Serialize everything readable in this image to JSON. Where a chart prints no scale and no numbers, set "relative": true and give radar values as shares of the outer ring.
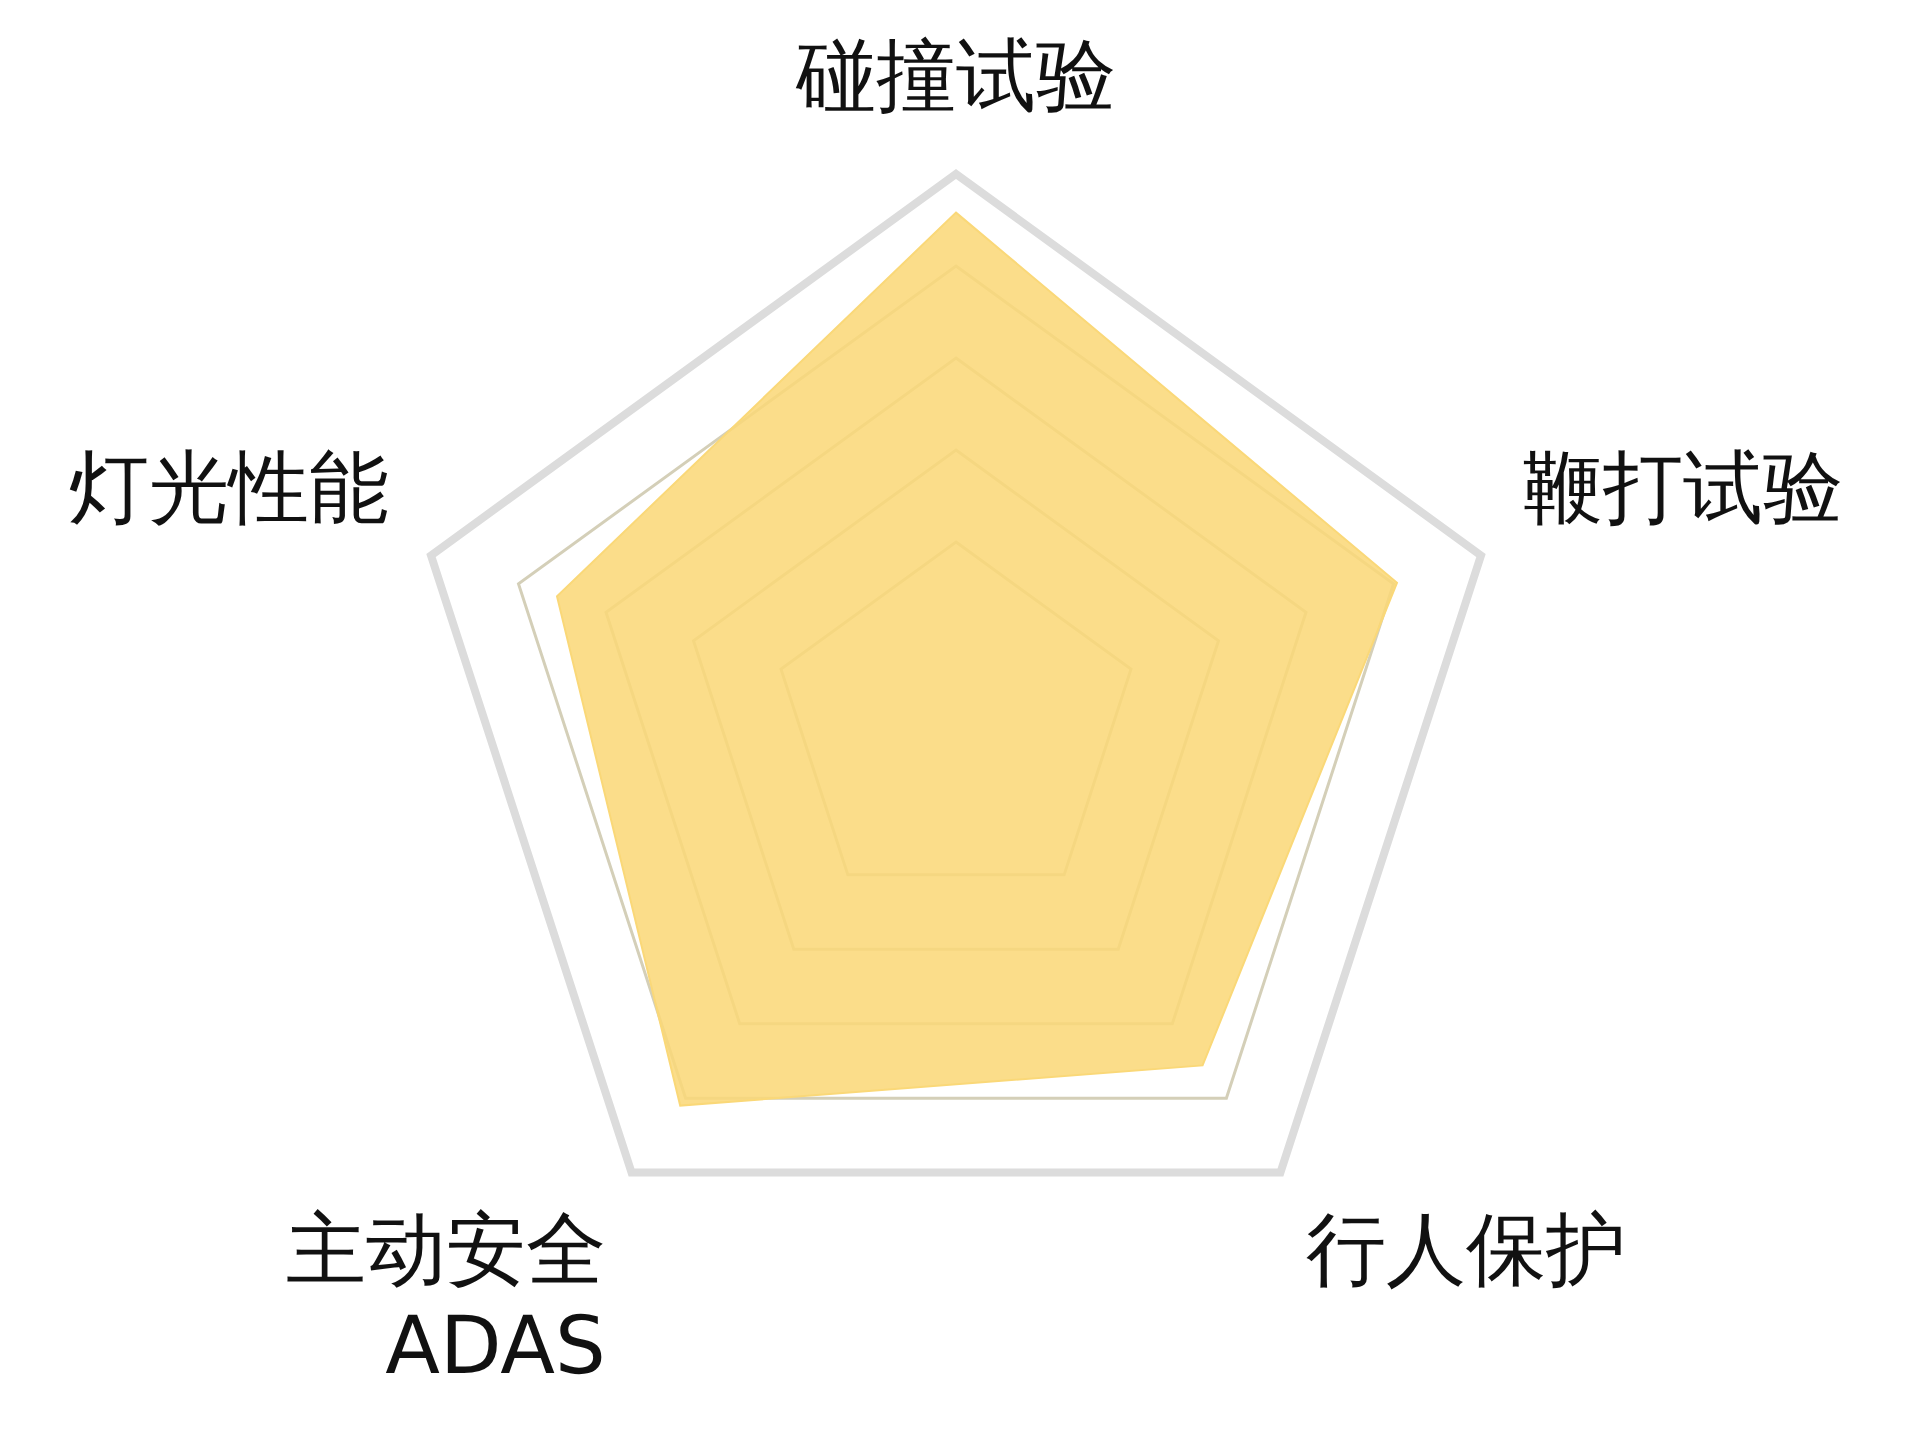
{
  "chart_data": {
    "type": "radar",
    "relative": true,
    "categories": [
      "碰撞试验",
      "鞭打试验",
      "行人保护",
      "主动安全\nADAS",
      "灯光性能"
    ],
    "series": [
      {
        "color": "#fad878",
        "values": [
          0.93,
          0.84,
          0.76,
          0.85,
          0.76
        ]
      }
    ],
    "legend": false
  }
}
